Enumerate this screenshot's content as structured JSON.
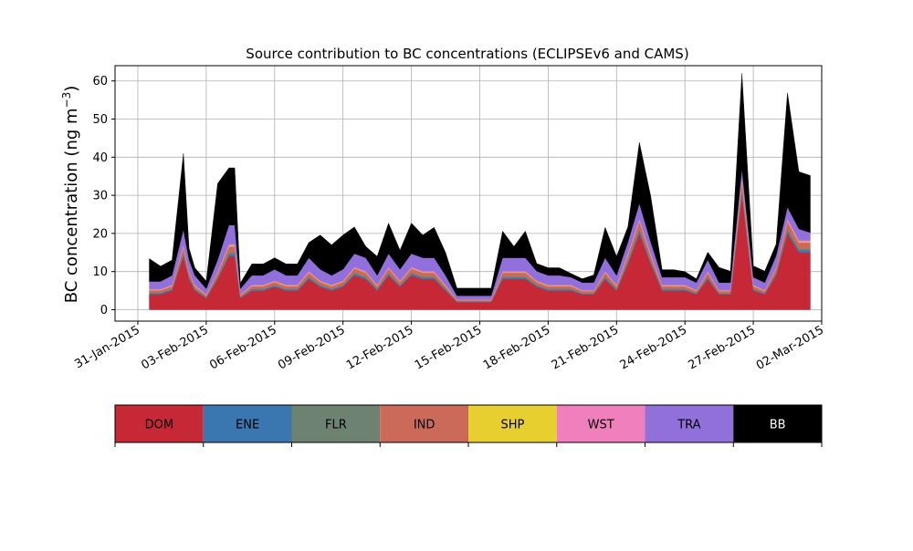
{
  "chart_data": {
    "type": "area",
    "stacked": true,
    "title": "Source contribution to BC concentrations (ECLIPSEv6 and CAMS)",
    "ylabel_main": "BC concentration (ng m",
    "ylabel_sup": "−3",
    "ylabel_close": ")",
    "xlabel": "",
    "x_axis": "date",
    "xlim": [
      "2015-01-30",
      "2015-03-02"
    ],
    "ylim": [
      -3,
      64
    ],
    "grid": true,
    "yticks": [
      0,
      10,
      20,
      30,
      40,
      50,
      60
    ],
    "xticks": [
      {
        "date": "2015-01-31",
        "label": "31-Jan-2015"
      },
      {
        "date": "2015-02-03",
        "label": "03-Feb-2015"
      },
      {
        "date": "2015-02-06",
        "label": "06-Feb-2015"
      },
      {
        "date": "2015-02-09",
        "label": "09-Feb-2015"
      },
      {
        "date": "2015-02-12",
        "label": "12-Feb-2015"
      },
      {
        "date": "2015-02-15",
        "label": "15-Feb-2015"
      },
      {
        "date": "2015-02-18",
        "label": "18-Feb-2015"
      },
      {
        "date": "2015-02-21",
        "label": "21-Feb-2015"
      },
      {
        "date": "2015-02-24",
        "label": "24-Feb-2015"
      },
      {
        "date": "2015-02-27",
        "label": "27-Feb-2015"
      },
      {
        "date": "2015-03-02",
        "label": "02-Mar-2015"
      }
    ],
    "dates": [
      "2015-01-31 12:00",
      "2015-02-01 00:00",
      "2015-02-01 12:00",
      "2015-02-02 00:00",
      "2015-02-02 06:00",
      "2015-02-02 12:00",
      "2015-02-03 00:00",
      "2015-02-03 12:00",
      "2015-02-04 00:00",
      "2015-02-04 06:00",
      "2015-02-04 12:00",
      "2015-02-05 00:00",
      "2015-02-05 12:00",
      "2015-02-06 00:00",
      "2015-02-06 12:00",
      "2015-02-07 00:00",
      "2015-02-07 12:00",
      "2015-02-08 00:00",
      "2015-02-08 12:00",
      "2015-02-09 00:00",
      "2015-02-09 12:00",
      "2015-02-10 00:00",
      "2015-02-10 12:00",
      "2015-02-11 00:00",
      "2015-02-11 12:00",
      "2015-02-12 00:00",
      "2015-02-12 12:00",
      "2015-02-13 00:00",
      "2015-02-13 12:00",
      "2015-02-14 00:00",
      "2015-02-14 12:00",
      "2015-02-15 00:00",
      "2015-02-15 12:00",
      "2015-02-16 00:00",
      "2015-02-16 12:00",
      "2015-02-17 00:00",
      "2015-02-17 12:00",
      "2015-02-18 00:00",
      "2015-02-18 12:00",
      "2015-02-19 00:00",
      "2015-02-19 12:00",
      "2015-02-20 00:00",
      "2015-02-20 12:00",
      "2015-02-21 00:00",
      "2015-02-21 12:00",
      "2015-02-22 00:00",
      "2015-02-22 12:00",
      "2015-02-23 00:00",
      "2015-02-23 12:00",
      "2015-02-24 00:00",
      "2015-02-24 12:00",
      "2015-02-25 00:00",
      "2015-02-25 12:00",
      "2015-02-26 00:00",
      "2015-02-26 12:00",
      "2015-02-27 00:00",
      "2015-02-27 12:00",
      "2015-02-28 00:00",
      "2015-02-28 12:00",
      "2015-03-01 00:00",
      "2015-03-01 12:00"
    ],
    "series": [
      {
        "name": "DOM",
        "color": "#c62835",
        "values": [
          4,
          4,
          5,
          14,
          8,
          5,
          3,
          8,
          14,
          14,
          3,
          5,
          5,
          6,
          5,
          5,
          8,
          6,
          5,
          6,
          9,
          8,
          5,
          9,
          6,
          9,
          8,
          8,
          5,
          2,
          2,
          2,
          2,
          8,
          8,
          8,
          6,
          5,
          5,
          5,
          4,
          4,
          8,
          5,
          12,
          20,
          12,
          5,
          5,
          5,
          4,
          8,
          4,
          4,
          30,
          5,
          4,
          9,
          20,
          15,
          15
        ]
      },
      {
        "name": "ENE",
        "color": "#3a76af",
        "values": [
          0.3,
          0.3,
          0.3,
          0.5,
          0.4,
          0.3,
          0.2,
          0.4,
          0.6,
          0.6,
          0.2,
          0.3,
          0.3,
          0.3,
          0.3,
          0.3,
          0.4,
          0.3,
          0.3,
          0.3,
          0.4,
          0.4,
          0.3,
          0.4,
          0.3,
          0.4,
          0.4,
          0.4,
          0.3,
          0.1,
          0.1,
          0.1,
          0.1,
          0.4,
          0.4,
          0.4,
          0.3,
          0.3,
          0.3,
          0.3,
          0.2,
          0.2,
          0.4,
          0.3,
          0.5,
          0.7,
          0.5,
          0.3,
          0.3,
          0.3,
          0.2,
          0.4,
          0.2,
          0.2,
          0.9,
          0.3,
          0.2,
          0.4,
          0.7,
          0.6,
          0.6
        ]
      },
      {
        "name": "FLR",
        "color": "#6e8271",
        "values": [
          0.2,
          0.2,
          0.2,
          0.4,
          0.3,
          0.2,
          0.1,
          0.3,
          0.4,
          0.4,
          0.1,
          0.2,
          0.2,
          0.2,
          0.2,
          0.2,
          0.3,
          0.2,
          0.2,
          0.2,
          0.3,
          0.3,
          0.2,
          0.3,
          0.2,
          0.3,
          0.3,
          0.3,
          0.2,
          0.1,
          0.1,
          0.1,
          0.1,
          0.3,
          0.3,
          0.3,
          0.2,
          0.2,
          0.2,
          0.2,
          0.1,
          0.1,
          0.3,
          0.2,
          0.4,
          0.5,
          0.4,
          0.2,
          0.2,
          0.2,
          0.1,
          0.3,
          0.1,
          0.1,
          0.6,
          0.2,
          0.1,
          0.3,
          0.5,
          0.4,
          0.4
        ]
      },
      {
        "name": "IND",
        "color": "#cc6a59",
        "values": [
          0.6,
          0.6,
          0.7,
          1.5,
          1,
          0.7,
          0.5,
          1,
          1.6,
          1.6,
          0.5,
          0.7,
          0.7,
          0.8,
          0.7,
          0.7,
          1,
          0.8,
          0.7,
          0.8,
          1.1,
          1,
          0.7,
          1.1,
          0.8,
          1.1,
          1,
          1,
          0.7,
          0.3,
          0.3,
          0.3,
          0.3,
          1,
          1,
          1,
          0.8,
          0.7,
          0.7,
          0.7,
          0.6,
          0.6,
          1,
          0.7,
          1.3,
          2,
          1.3,
          0.7,
          0.7,
          0.7,
          0.6,
          1,
          0.6,
          0.6,
          2.5,
          0.7,
          0.6,
          1.1,
          2,
          1.6,
          1.6
        ]
      },
      {
        "name": "SHP",
        "color": "#e6cf2e",
        "values": [
          0.1,
          0.1,
          0.1,
          0.2,
          0.1,
          0.1,
          0.1,
          0.1,
          0.2,
          0.2,
          0.1,
          0.1,
          0.1,
          0.1,
          0.1,
          0.1,
          0.1,
          0.1,
          0.1,
          0.1,
          0.1,
          0.1,
          0.1,
          0.1,
          0.1,
          0.1,
          0.1,
          0.1,
          0.1,
          0.05,
          0.05,
          0.05,
          0.05,
          0.1,
          0.1,
          0.1,
          0.1,
          0.1,
          0.1,
          0.1,
          0.1,
          0.1,
          0.1,
          0.1,
          0.2,
          0.2,
          0.2,
          0.1,
          0.1,
          0.1,
          0.1,
          0.1,
          0.1,
          0.1,
          0.3,
          0.1,
          0.1,
          0.1,
          0.2,
          0.2,
          0.2
        ]
      },
      {
        "name": "WST",
        "color": "#f07fbe",
        "values": [
          0.2,
          0.2,
          0.2,
          0.4,
          0.3,
          0.2,
          0.1,
          0.3,
          0.4,
          0.4,
          0.1,
          0.2,
          0.2,
          0.2,
          0.2,
          0.2,
          0.3,
          0.2,
          0.2,
          0.2,
          0.3,
          0.3,
          0.2,
          0.3,
          0.2,
          0.3,
          0.3,
          0.3,
          0.2,
          0.1,
          0.1,
          0.1,
          0.1,
          0.3,
          0.3,
          0.3,
          0.2,
          0.2,
          0.2,
          0.2,
          0.1,
          0.1,
          0.3,
          0.2,
          0.4,
          0.5,
          0.4,
          0.2,
          0.2,
          0.2,
          0.1,
          0.3,
          0.1,
          0.1,
          0.7,
          0.2,
          0.1,
          0.3,
          0.5,
          0.4,
          0.4
        ]
      },
      {
        "name": "TRA",
        "color": "#9270db",
        "values": [
          2,
          2,
          2.5,
          4,
          3,
          2.5,
          1.5,
          3,
          5,
          5,
          1.5,
          2.5,
          2.5,
          3,
          2.5,
          2.5,
          3.5,
          3,
          2.5,
          3,
          3.5,
          3.5,
          2.5,
          3.5,
          3,
          3.5,
          3.5,
          3.5,
          2.5,
          1,
          1,
          1,
          1,
          3.5,
          3.5,
          3.5,
          2.5,
          2.5,
          2.5,
          2,
          2,
          2,
          3.5,
          2.5,
          3,
          4,
          3,
          2,
          2,
          2,
          2,
          3,
          2,
          2,
          2,
          2,
          2,
          3,
          3,
          3,
          2
        ]
      },
      {
        "name": "BB",
        "color": "#000000",
        "values": [
          6,
          4,
          4,
          20,
          3,
          2,
          2,
          20,
          15,
          15,
          1.5,
          3,
          3,
          3,
          3,
          3,
          4,
          9,
          8,
          9,
          7,
          3,
          5,
          8,
          5,
          8,
          6,
          8,
          6,
          2,
          2,
          2,
          2,
          7,
          3,
          7,
          2,
          2,
          2,
          1,
          1,
          2,
          8,
          5,
          4,
          16,
          12,
          2,
          2,
          1.5,
          1,
          2,
          4,
          3,
          25,
          3,
          3,
          3,
          30,
          15,
          15
        ]
      }
    ]
  },
  "legend": {
    "items": [
      {
        "label": "DOM",
        "color": "#c62835",
        "text_color": "#000000"
      },
      {
        "label": "ENE",
        "color": "#3a76af",
        "text_color": "#000000"
      },
      {
        "label": "FLR",
        "color": "#6e8271",
        "text_color": "#000000"
      },
      {
        "label": "IND",
        "color": "#cc6a59",
        "text_color": "#000000"
      },
      {
        "label": "SHP",
        "color": "#e6cf2e",
        "text_color": "#000000"
      },
      {
        "label": "WST",
        "color": "#f07fbe",
        "text_color": "#000000"
      },
      {
        "label": "TRA",
        "color": "#9270db",
        "text_color": "#000000"
      },
      {
        "label": "BB",
        "color": "#000000",
        "text_color": "#ffffff"
      }
    ]
  }
}
